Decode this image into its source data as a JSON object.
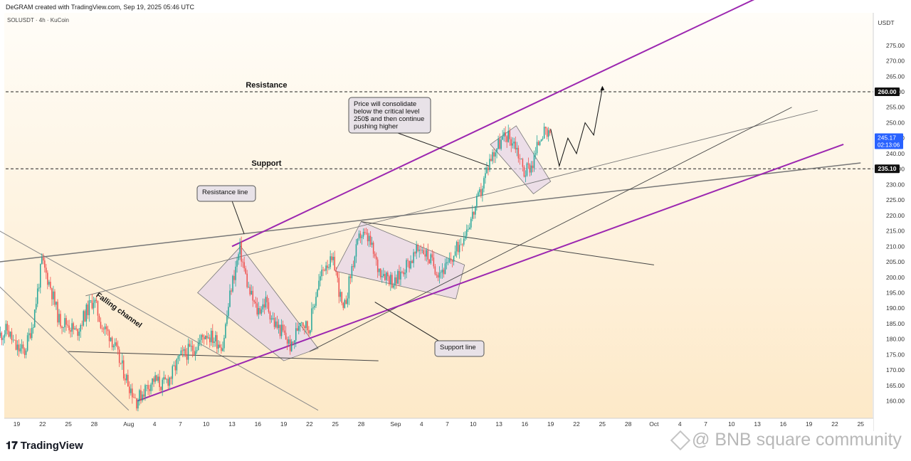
{
  "header": {
    "credit": "DeGRAM created with TradingView.com, Sep 19, 2025 05:46 UTC",
    "symbol_line": "SOLUSDT · 4h · KuCoin"
  },
  "brand": {
    "logo_glyph": "𝟏𝟕",
    "name": "TradingView"
  },
  "watermark": {
    "icon": "bnb-diamond-icon",
    "text": "@ BNB square community"
  },
  "colors": {
    "bg_top": "#fffdf8",
    "bg_bottom": "#fde9c8",
    "up_candle": "#26a69a",
    "down_candle": "#ef5350",
    "channel": "#9c27b0",
    "pattern_fill": "#e6d6e8",
    "label_bg": "#e8e2e8",
    "price_badge": "#2962ff"
  },
  "chart_data": {
    "type": "candlestick",
    "symbol": "SOLUSDT",
    "interval": "4h",
    "exchange": "KuCoin",
    "currency": "USDT",
    "ylim": [
      157,
      280
    ],
    "y_ticks": [
      160,
      165,
      170,
      175,
      180,
      185,
      190,
      195,
      200,
      205,
      210,
      215,
      220,
      225,
      230,
      235,
      240,
      245,
      250,
      255,
      260,
      265,
      270,
      275
    ],
    "x_ticks": [
      {
        "date": "2025-07-19",
        "label": "19"
      },
      {
        "date": "2025-07-22",
        "label": "22"
      },
      {
        "date": "2025-07-25",
        "label": "25"
      },
      {
        "date": "2025-07-28",
        "label": "28"
      },
      {
        "date": "2025-08-01",
        "label": "Aug"
      },
      {
        "date": "2025-08-04",
        "label": "4"
      },
      {
        "date": "2025-08-07",
        "label": "7"
      },
      {
        "date": "2025-08-10",
        "label": "10"
      },
      {
        "date": "2025-08-13",
        "label": "13"
      },
      {
        "date": "2025-08-16",
        "label": "16"
      },
      {
        "date": "2025-08-19",
        "label": "19"
      },
      {
        "date": "2025-08-22",
        "label": "22"
      },
      {
        "date": "2025-08-25",
        "label": "25"
      },
      {
        "date": "2025-08-28",
        "label": "28"
      },
      {
        "date": "2025-09-01",
        "label": "Sep"
      },
      {
        "date": "2025-09-04",
        "label": "4"
      },
      {
        "date": "2025-09-07",
        "label": "7"
      },
      {
        "date": "2025-09-10",
        "label": "10"
      },
      {
        "date": "2025-09-13",
        "label": "13"
      },
      {
        "date": "2025-09-16",
        "label": "16"
      },
      {
        "date": "2025-09-19",
        "label": "19"
      },
      {
        "date": "2025-09-22",
        "label": "22"
      },
      {
        "date": "2025-09-25",
        "label": "25"
      },
      {
        "date": "2025-09-28",
        "label": "28"
      },
      {
        "date": "2025-10-01",
        "label": "Oct"
      },
      {
        "date": "2025-10-04",
        "label": "4"
      },
      {
        "date": "2025-10-07",
        "label": "7"
      },
      {
        "date": "2025-10-10",
        "label": "10"
      },
      {
        "date": "2025-10-13",
        "label": "13"
      },
      {
        "date": "2025-10-16",
        "label": "16"
      },
      {
        "date": "2025-10-19",
        "label": "19"
      },
      {
        "date": "2025-10-22",
        "label": "22"
      },
      {
        "date": "2025-10-25",
        "label": "25"
      }
    ],
    "price_path": [
      [
        "2025-07-17",
        181
      ],
      [
        "2025-07-18",
        183
      ],
      [
        "2025-07-19",
        177
      ],
      [
        "2025-07-20",
        176
      ],
      [
        "2025-07-21",
        186
      ],
      [
        "2025-07-22",
        205
      ],
      [
        "2025-07-23",
        197
      ],
      [
        "2025-07-24",
        186
      ],
      [
        "2025-07-25",
        185
      ],
      [
        "2025-07-26",
        182
      ],
      [
        "2025-07-27",
        188
      ],
      [
        "2025-07-28",
        193
      ],
      [
        "2025-07-29",
        184
      ],
      [
        "2025-07-30",
        181
      ],
      [
        "2025-07-31",
        173
      ],
      [
        "2025-08-01",
        166
      ],
      [
        "2025-08-02",
        160
      ],
      [
        "2025-08-03",
        164
      ],
      [
        "2025-08-04",
        167
      ],
      [
        "2025-08-05",
        165
      ],
      [
        "2025-08-06",
        168
      ],
      [
        "2025-08-07",
        174
      ],
      [
        "2025-08-08",
        176
      ],
      [
        "2025-08-09",
        178
      ],
      [
        "2025-08-10",
        182
      ],
      [
        "2025-08-11",
        180
      ],
      [
        "2025-08-12",
        178
      ],
      [
        "2025-08-13",
        197
      ],
      [
        "2025-08-14",
        209
      ],
      [
        "2025-08-15",
        196
      ],
      [
        "2025-08-16",
        189
      ],
      [
        "2025-08-17",
        192
      ],
      [
        "2025-08-18",
        185
      ],
      [
        "2025-08-19",
        182
      ],
      [
        "2025-08-20",
        177
      ],
      [
        "2025-08-21",
        187
      ],
      [
        "2025-08-22",
        183
      ],
      [
        "2025-08-23",
        197
      ],
      [
        "2025-08-24",
        205
      ],
      [
        "2025-08-25",
        204
      ],
      [
        "2025-08-26",
        188
      ],
      [
        "2025-08-27",
        203
      ],
      [
        "2025-08-28",
        214
      ],
      [
        "2025-08-29",
        212
      ],
      [
        "2025-08-30",
        203
      ],
      [
        "2025-08-31",
        201
      ],
      [
        "2025-09-01",
        198
      ],
      [
        "2025-09-02",
        203
      ],
      [
        "2025-09-03",
        206
      ],
      [
        "2025-09-04",
        210
      ],
      [
        "2025-09-05",
        206
      ],
      [
        "2025-09-06",
        202
      ],
      [
        "2025-09-07",
        203
      ],
      [
        "2025-09-08",
        208
      ],
      [
        "2025-09-09",
        214
      ],
      [
        "2025-09-10",
        220
      ],
      [
        "2025-09-11",
        228
      ],
      [
        "2025-09-12",
        238
      ],
      [
        "2025-09-13",
        243
      ],
      [
        "2025-09-14",
        246
      ],
      [
        "2025-09-15",
        243
      ],
      [
        "2025-09-16",
        234
      ],
      [
        "2025-09-17",
        237
      ],
      [
        "2025-09-18",
        247
      ],
      [
        "2025-09-19",
        245
      ]
    ],
    "current_price": {
      "value": "245.17",
      "countdown": "02:13:06",
      "value_num": 245.17
    },
    "levels": [
      {
        "name": "Resistance",
        "price": 260,
        "label": "260.00"
      },
      {
        "name": "Support",
        "price": 235.1,
        "label": "235.10"
      }
    ],
    "annotations": {
      "resistance_text": "Resistance",
      "support_text": "Support",
      "falling_channel": "Falling channel",
      "resistance_line_box": "Resistance line",
      "support_line_box": "Support line",
      "forecast_box_lines": [
        "Price will consolidate",
        "below the critical level",
        "250$ and then continue",
        "pushing higher"
      ]
    },
    "forecast_path": [
      [
        "2025-09-19",
        248
      ],
      [
        "2025-09-20",
        236
      ],
      [
        "2025-09-21",
        245
      ],
      [
        "2025-09-22",
        240
      ],
      [
        "2025-09-23",
        250
      ],
      [
        "2025-09-24",
        246
      ],
      [
        "2025-09-25",
        261
      ]
    ],
    "trendlines": {
      "rising_channel_upper": [
        [
          "2025-08-13",
          210
        ],
        [
          "2025-10-15",
          293
        ]
      ],
      "rising_channel_lower": [
        [
          "2025-08-02",
          160
        ],
        [
          "2025-10-23",
          243
        ]
      ],
      "falling_channel_upper": [
        [
          "2025-07-17",
          215
        ],
        [
          "2025-08-23",
          157
        ]
      ],
      "falling_channel_lower": [
        [
          "2025-07-17",
          197
        ],
        [
          "2025-08-01",
          157
        ]
      ],
      "resistance_line": [
        [
          "2025-07-17",
          205
        ],
        [
          "2025-10-25",
          237
        ]
      ],
      "inner_thin_line": [
        [
          "2025-07-27",
          194
        ],
        [
          "2025-10-20",
          254
        ]
      ],
      "support_diagonal": [
        [
          "2025-08-22",
          176
        ],
        [
          "2025-10-17",
          255
        ]
      ],
      "horizontal_support": [
        [
          "2025-07-25",
          176
        ],
        [
          "2025-08-30",
          173
        ]
      ],
      "descending_top": [
        [
          "2025-08-28",
          218
        ],
        [
          "2025-10-01",
          204
        ]
      ]
    },
    "patterns": [
      [
        [
          "2025-08-09",
          195
        ],
        [
          "2025-08-14",
          210
        ],
        [
          "2025-08-23",
          177
        ],
        [
          "2025-08-19",
          173
        ]
      ],
      [
        [
          "2025-08-25",
          202
        ],
        [
          "2025-08-28",
          218
        ],
        [
          "2025-09-09",
          204
        ],
        [
          "2025-09-08",
          193
        ]
      ],
      [
        [
          "2025-09-12",
          243
        ],
        [
          "2025-09-15",
          249
        ],
        [
          "2025-09-19",
          231
        ],
        [
          "2025-09-17",
          227
        ]
      ]
    ]
  }
}
